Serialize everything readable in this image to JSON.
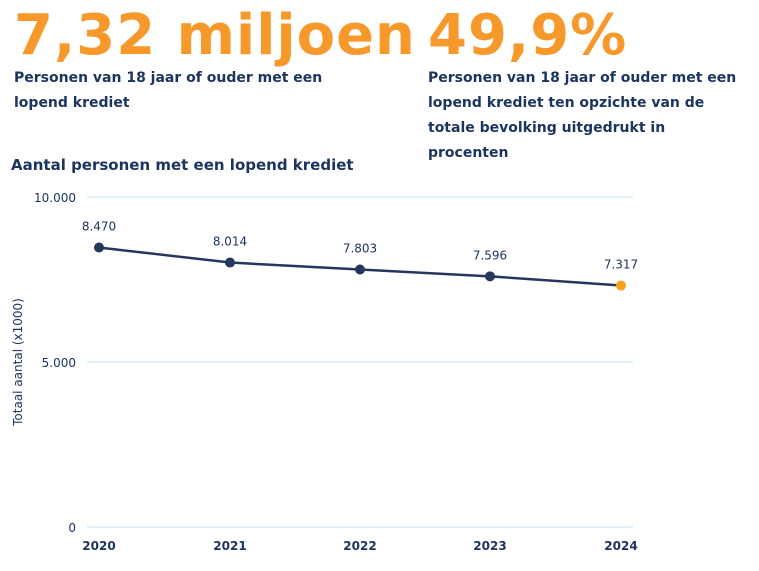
{
  "stats": [
    {
      "value": "7,32 miljoen",
      "description": "Personen van 18 jaar of ouder met een lopend krediet"
    },
    {
      "value": "49,9%",
      "description": "Personen van 18 jaar of ouder met een lopend krediet ten opzichte van de totale bevolking uitgedrukt in procenten"
    }
  ],
  "colors": {
    "accent": "#f7982a",
    "text": "#1c3560",
    "line": "#27365e",
    "grid": "#bfe2f2",
    "highlight": "#f7a21b"
  },
  "chart_data": {
    "type": "line",
    "title": "Aantal personen met een lopend krediet",
    "ylabel": "Totaal aantal (x1000)",
    "xlabel": "",
    "categories": [
      "2020",
      "2021",
      "2022",
      "2023",
      "2024"
    ],
    "values": [
      8470,
      8014,
      7803,
      7596,
      7317
    ],
    "data_labels": [
      "8.470",
      "8.014",
      "7.803",
      "7.596",
      "7.317"
    ],
    "ylim": [
      0,
      10000
    ],
    "yticks": [
      0,
      5000,
      10000
    ],
    "ytick_labels": [
      "0",
      "5.000",
      "10.000"
    ],
    "grid": true,
    "highlight_last_point": true
  }
}
